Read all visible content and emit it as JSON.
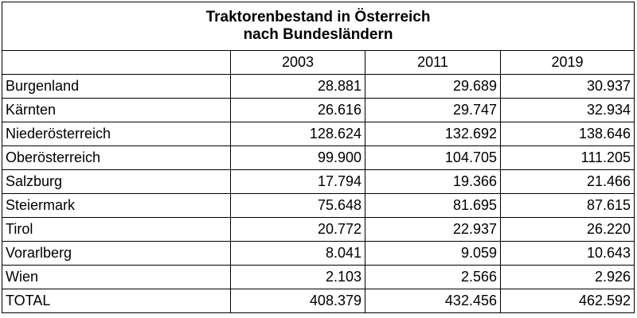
{
  "chart_data": {
    "type": "table",
    "title_line1": "Traktorenbestand in Österreich",
    "title_line2": "nach Bundesländern",
    "columns": [
      "",
      "2003",
      "2011",
      "2019"
    ],
    "rows": [
      {
        "label": "Burgenland",
        "values": [
          "28.881",
          "29.689",
          "30.937"
        ]
      },
      {
        "label": "Kärnten",
        "values": [
          "26.616",
          "29.747",
          "32.934"
        ]
      },
      {
        "label": "Niederösterreich",
        "values": [
          "128.624",
          "132.692",
          "138.646"
        ]
      },
      {
        "label": "Oberösterreich",
        "values": [
          "99.900",
          "104.705",
          "111.205"
        ]
      },
      {
        "label": "Salzburg",
        "values": [
          "17.794",
          "19.366",
          "21.466"
        ]
      },
      {
        "label": "Steiermark",
        "values": [
          "75.648",
          "81.695",
          "87.615"
        ]
      },
      {
        "label": "Tirol",
        "values": [
          "20.772",
          "22.937",
          "26.220"
        ]
      },
      {
        "label": "Vorarlberg",
        "values": [
          "8.041",
          "9.059",
          "10.643"
        ]
      },
      {
        "label": "Wien",
        "values": [
          "2.103",
          "2.566",
          "2.926"
        ]
      },
      {
        "label": "TOTAL",
        "values": [
          "408.379",
          "432.456",
          "462.592"
        ]
      }
    ]
  }
}
